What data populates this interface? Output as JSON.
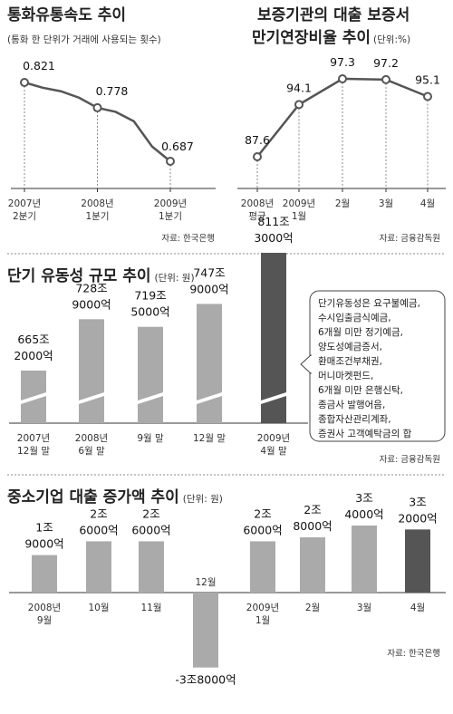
{
  "colors": {
    "line": "#555555",
    "bar": "#aaaaaa",
    "bar_highlight": "#555555",
    "divider": "#888888"
  },
  "chart_data": [
    {
      "type": "line",
      "title": "통화유통속도 추이",
      "subtitle": "(통화 한 단위가 거래에 사용되는 횟수)",
      "x_labels": [
        [
          "2007년",
          "2분기"
        ],
        [
          "2008년",
          "1분기"
        ],
        [
          "2009년",
          "1분기"
        ]
      ],
      "values": [
        0.821,
        0.778,
        0.687
      ],
      "value_labels": [
        "0.821",
        "0.778",
        "0.687"
      ],
      "point_values": [
        0.821,
        0.812,
        0.806,
        0.795,
        0.778,
        0.771,
        0.755,
        0.712,
        0.687
      ],
      "label_indices": [
        0,
        4,
        8
      ],
      "source": "자료: 한국은행"
    },
    {
      "type": "line",
      "title_line1": "보증기관의 대출 보증서",
      "title_line2": "만기연장비율 추이",
      "unit": "(단위:%)",
      "categories": [
        [
          "2008년",
          "평균"
        ],
        [
          "2009년",
          "1월"
        ],
        [
          "2월"
        ],
        [
          "3월"
        ],
        [
          "4월"
        ]
      ],
      "values": [
        87.6,
        94.1,
        97.3,
        97.2,
        95.1
      ],
      "value_labels": [
        "87.6",
        "94.1",
        "97.3",
        "97.2",
        "95.1"
      ],
      "source": "자료: 금융감독원"
    },
    {
      "type": "bar",
      "title": "단기 유동성 규모 추이",
      "unit": "(단위: 원)",
      "categories": [
        [
          "2007년",
          "12월 말"
        ],
        [
          "2008년",
          "6월 말"
        ],
        [
          "9월 말"
        ],
        [
          "12월 말"
        ],
        [
          "2009년",
          "4월 말"
        ]
      ],
      "values": [
        665.2,
        728.9,
        719.5,
        747.9,
        811.3
      ],
      "value_labels": [
        [
          "665조",
          "2000억"
        ],
        [
          "728조",
          "9000억"
        ],
        [
          "719조",
          "5000억"
        ],
        [
          "747조",
          "9000억"
        ],
        [
          "811조",
          "3000억"
        ]
      ],
      "note_lines": [
        "단기유동성은 요구불예금,",
        "수시입출금식예금,",
        "6개월 미만 정기예금,",
        "양도성예금증서,",
        "환매조건부채권,",
        "머니마켓펀드,",
        "6개월 미만 은행신탁,",
        "종금사 발행어음,",
        "종합자산관리계좌,",
        "증권사 고객예탁금의 합"
      ],
      "source": "자료: 금융감독원"
    },
    {
      "type": "bar",
      "title": "중소기업 대출 증가액 추이",
      "unit": "(단위: 원)",
      "categories": [
        [
          "2008년",
          "9월"
        ],
        [
          "10월"
        ],
        [
          "11월"
        ],
        [
          "12월"
        ],
        [
          "2009년",
          "1월"
        ],
        [
          "2월"
        ],
        [
          "3월"
        ],
        [
          "4월"
        ]
      ],
      "values": [
        1.9,
        2.6,
        2.6,
        -3.8,
        2.6,
        2.8,
        3.4,
        3.2
      ],
      "value_labels": [
        [
          "1조",
          "9000억"
        ],
        [
          "2조",
          "6000억"
        ],
        [
          "2조",
          "6000억"
        ],
        [
          "-3조8000억"
        ],
        [
          "2조",
          "6000억"
        ],
        [
          "2조",
          "8000억"
        ],
        [
          "3조",
          "4000억"
        ],
        [
          "3조",
          "2000억"
        ]
      ],
      "source": "자료: 한국은행"
    }
  ]
}
